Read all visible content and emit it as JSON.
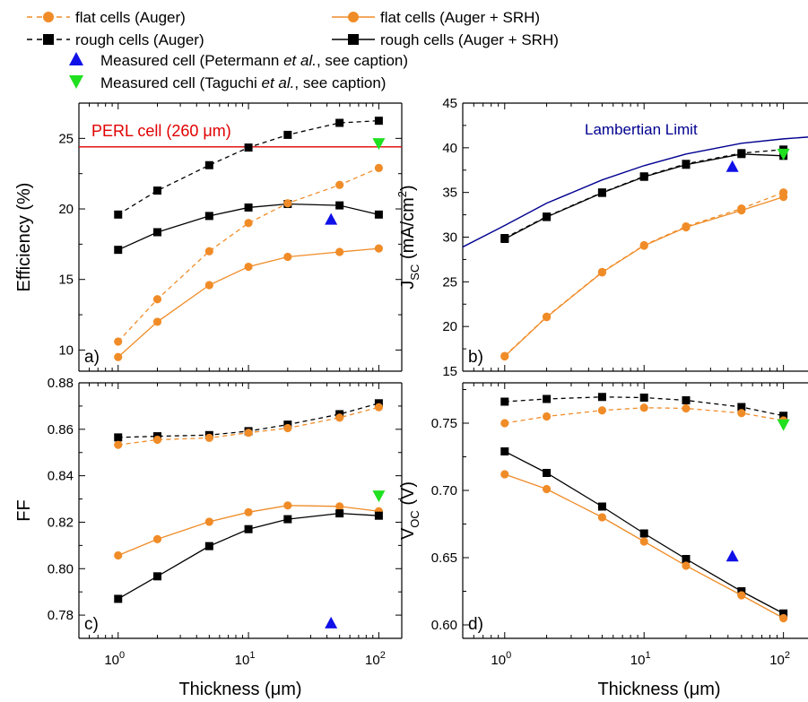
{
  "figure": {
    "xlabel": "Thickness (μm)",
    "colors": {
      "flat": "#f08c28",
      "rough": "#000000",
      "petermann": "#1010e8",
      "taguchi": "#20e020",
      "perl": "#e00000",
      "lambertian": "#000090"
    }
  },
  "legend": [
    {
      "label": "flat cells (Auger)",
      "style": "dashed",
      "marker": "circle",
      "color": "#f08c28"
    },
    {
      "label": "flat cells (Auger + SRH)",
      "style": "solid",
      "marker": "circle",
      "color": "#f08c28"
    },
    {
      "label": "rough cells (Auger)",
      "style": "dashed",
      "marker": "square",
      "color": "#000000"
    },
    {
      "label": "rough cells (Auger + SRH)",
      "style": "solid",
      "marker": "square",
      "color": "#000000"
    },
    {
      "label_pre": "Measured cell (Petermann ",
      "label_em": "et al.",
      "label_post": ", see caption)",
      "marker": "triangle-up",
      "color": "#1010e8"
    },
    {
      "label_pre": "Measured cell (Taguchi ",
      "label_em": "et al.",
      "label_post": ", see caption)",
      "marker": "triangle-down",
      "color": "#20e020"
    }
  ],
  "chart_data": [
    {
      "panel": "a)",
      "type": "line",
      "xscale": "log",
      "xlim": [
        0.5,
        150
      ],
      "ylim": [
        8.5,
        27.5
      ],
      "yticks": [
        10,
        15,
        20,
        25
      ],
      "ylabel": "Efficiency (%)",
      "x": [
        1,
        2,
        5,
        10,
        20,
        50,
        100
      ],
      "series": [
        {
          "name": "rough cells (Auger)",
          "values": [
            19.6,
            21.3,
            23.1,
            24.35,
            25.25,
            26.1,
            26.25
          ],
          "style": "dashed",
          "marker": "square",
          "color": "#000000"
        },
        {
          "name": "rough cells (Auger + SRH)",
          "values": [
            17.1,
            18.35,
            19.5,
            20.1,
            20.35,
            20.25,
            19.6
          ],
          "style": "solid",
          "marker": "square",
          "color": "#000000"
        },
        {
          "name": "flat cells (Auger)",
          "values": [
            10.6,
            13.6,
            17.0,
            19.0,
            20.4,
            21.7,
            22.9
          ],
          "style": "dashed",
          "marker": "circle",
          "color": "#f08c28"
        },
        {
          "name": "flat cells (Auger + SRH)",
          "values": [
            9.5,
            12.0,
            14.6,
            15.9,
            16.6,
            16.95,
            17.2
          ],
          "style": "solid",
          "marker": "circle",
          "color": "#f08c28"
        }
      ],
      "measured": [
        {
          "x": 43,
          "y": 19.2,
          "marker": "triangle-up",
          "color": "#1010e8"
        },
        {
          "x": 100,
          "y": 24.7,
          "marker": "triangle-down",
          "color": "#20e020"
        }
      ],
      "hline": {
        "y": 24.4,
        "label": "PERL cell (260 μm)",
        "color": "#e00000"
      }
    },
    {
      "panel": "b)",
      "type": "line",
      "xscale": "log",
      "xlim": [
        0.5,
        150
      ],
      "ylim": [
        15,
        45
      ],
      "yticks": [
        15,
        20,
        25,
        30,
        35,
        40,
        45
      ],
      "ylabel_main": "J",
      "ylabel_sub": "SC",
      "ylabel_rest": " (mA/cm",
      "ylabel_sup": "2",
      "ylabel_end": ")",
      "x": [
        1,
        2,
        5,
        10,
        20,
        50,
        100
      ],
      "series": [
        {
          "name": "rough cells (Auger)",
          "values": [
            29.9,
            32.3,
            35.0,
            36.8,
            38.2,
            39.4,
            39.8
          ],
          "style": "dashed",
          "marker": "square",
          "color": "#000000"
        },
        {
          "name": "rough cells (Auger + SRH)",
          "values": [
            29.8,
            32.25,
            34.95,
            36.75,
            38.1,
            39.3,
            39.1
          ],
          "style": "solid",
          "marker": "square",
          "color": "#000000"
        },
        {
          "name": "flat cells (Auger)",
          "values": [
            16.7,
            21.1,
            26.1,
            29.1,
            31.2,
            33.2,
            35.0
          ],
          "style": "dashed",
          "marker": "circle",
          "color": "#f08c28"
        },
        {
          "name": "flat cells (Auger + SRH)",
          "values": [
            16.65,
            21.05,
            26.05,
            29.05,
            31.1,
            33.0,
            34.5
          ],
          "style": "solid",
          "marker": "circle",
          "color": "#f08c28"
        }
      ],
      "measured": [
        {
          "x": 43,
          "y": 37.8,
          "marker": "triangle-up",
          "color": "#1010e8"
        },
        {
          "x": 100,
          "y": 39.4,
          "marker": "triangle-down",
          "color": "#20e020"
        }
      ],
      "curve": {
        "label": "Lambertian Limit",
        "color": "#000090",
        "x": [
          0.5,
          1,
          2,
          5,
          10,
          20,
          50,
          100,
          150
        ],
        "y": [
          28.9,
          31.3,
          33.8,
          36.4,
          38.0,
          39.3,
          40.5,
          41.0,
          41.2
        ]
      }
    },
    {
      "panel": "c)",
      "type": "line",
      "xscale": "log",
      "xlim": [
        0.5,
        150
      ],
      "ylim": [
        0.77,
        0.88
      ],
      "yticks": [
        0.78,
        0.8,
        0.82,
        0.84,
        0.86,
        0.88
      ],
      "ytick_labels": [
        "0.78",
        "0.80",
        "0.82",
        "0.84",
        "0.86",
        "0.88"
      ],
      "ylabel": "FF",
      "x": [
        1,
        2,
        5,
        10,
        20,
        50,
        100
      ],
      "series": [
        {
          "name": "rough cells (Auger)",
          "values": [
            0.8565,
            0.857,
            0.8575,
            0.8592,
            0.862,
            0.8665,
            0.8712
          ],
          "style": "dashed",
          "marker": "square",
          "color": "#000000"
        },
        {
          "name": "flat cells (Auger)",
          "values": [
            0.8533,
            0.8555,
            0.8563,
            0.8585,
            0.8605,
            0.865,
            0.8695
          ],
          "style": "dashed",
          "marker": "circle",
          "color": "#f08c28"
        },
        {
          "name": "flat cells (Auger + SRH)",
          "values": [
            0.8057,
            0.8127,
            0.8202,
            0.8243,
            0.8272,
            0.8268,
            0.8247
          ],
          "style": "solid",
          "marker": "circle",
          "color": "#f08c28"
        },
        {
          "name": "rough cells (Auger + SRH)",
          "values": [
            0.787,
            0.7967,
            0.8097,
            0.817,
            0.8213,
            0.8238,
            0.8228
          ],
          "style": "solid",
          "marker": "square",
          "color": "#000000"
        }
      ],
      "measured": [
        {
          "x": 43,
          "y": 0.7762,
          "marker": "triangle-up",
          "color": "#1010e8"
        },
        {
          "x": 100,
          "y": 0.8317,
          "marker": "triangle-down",
          "color": "#20e020"
        }
      ]
    },
    {
      "panel": "d)",
      "type": "line",
      "xscale": "log",
      "xlim": [
        0.5,
        150
      ],
      "ylim": [
        0.59,
        0.78
      ],
      "yticks": [
        0.6,
        0.65,
        0.7,
        0.75
      ],
      "ytick_labels": [
        "0.60",
        "0.65",
        "0.70",
        "0.75"
      ],
      "ylabel_main": "V",
      "ylabel_sub": "OC",
      "ylabel_rest": " (V)",
      "x": [
        1,
        2,
        5,
        10,
        20,
        50,
        100
      ],
      "series": [
        {
          "name": "rough cells (Auger)",
          "values": [
            0.766,
            0.768,
            0.7695,
            0.769,
            0.767,
            0.762,
            0.7555
          ],
          "style": "dashed",
          "marker": "square",
          "color": "#000000"
        },
        {
          "name": "flat cells (Auger)",
          "values": [
            0.75,
            0.755,
            0.7595,
            0.7615,
            0.761,
            0.7575,
            0.752
          ],
          "style": "dashed",
          "marker": "circle",
          "color": "#f08c28"
        },
        {
          "name": "rough cells (Auger + SRH)",
          "values": [
            0.729,
            0.713,
            0.688,
            0.668,
            0.649,
            0.625,
            0.6085
          ],
          "style": "solid",
          "marker": "square",
          "color": "#000000"
        },
        {
          "name": "flat cells (Auger + SRH)",
          "values": [
            0.712,
            0.701,
            0.68,
            0.662,
            0.644,
            0.622,
            0.605
          ],
          "style": "solid",
          "marker": "circle",
          "color": "#f08c28"
        }
      ],
      "measured": [
        {
          "x": 43,
          "y": 0.6505,
          "marker": "triangle-up",
          "color": "#1010e8"
        },
        {
          "x": 100,
          "y": 0.7495,
          "marker": "triangle-down",
          "color": "#20e020"
        }
      ]
    }
  ]
}
